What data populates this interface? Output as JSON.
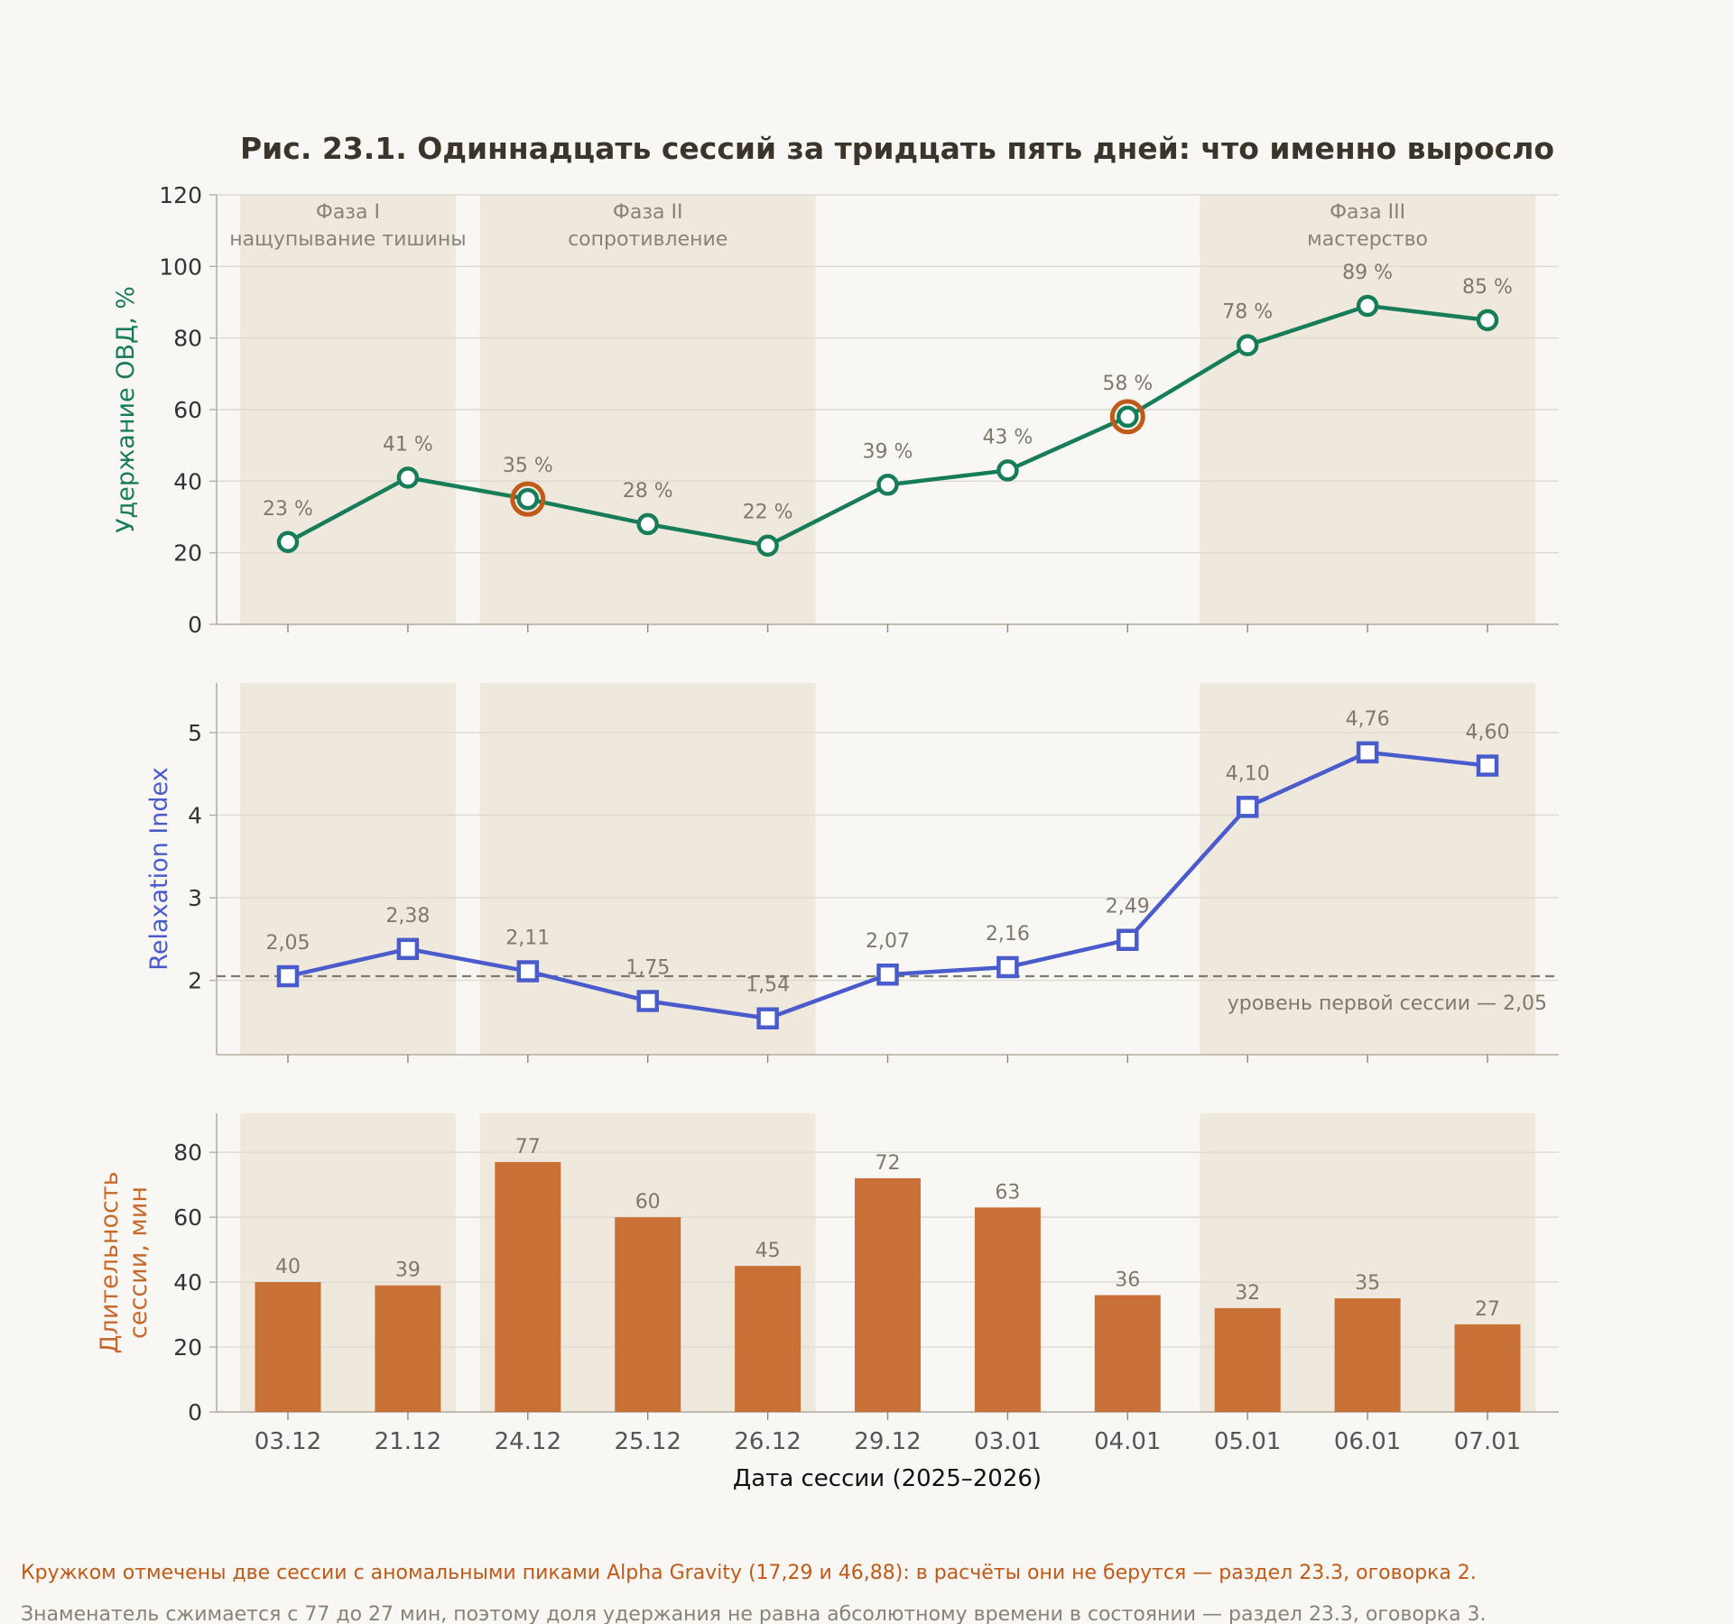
{
  "title": "Рис. 23.1. Одиннадцать сессий за тридцать пять дней: что именно выросло",
  "xlabel": "Дата сессии (2025–2026)",
  "categories": [
    "03.12",
    "21.12",
    "24.12",
    "25.12",
    "26.12",
    "29.12",
    "03.01",
    "04.01",
    "05.01",
    "06.01",
    "07.01"
  ],
  "phases": [
    {
      "title": "Фаза I",
      "subtitle": "нащупывание тишины",
      "from": 0,
      "to": 1
    },
    {
      "title": "Фаза II",
      "subtitle": "сопротивление",
      "from": 2,
      "to": 4
    },
    {
      "title": "Фаза III",
      "subtitle": "мастерство",
      "from": 8,
      "to": 10
    }
  ],
  "colors": {
    "background": "#f9f7f3",
    "phase_band": "#efe8dd",
    "retention": "#177d58",
    "relaxation": "#4a5bcc",
    "duration": "#c6692d",
    "anomaly": "#c05a18",
    "grid": "#dedad2",
    "reference": "#7f7a72"
  },
  "chart_data": [
    {
      "type": "line",
      "ylabel": "Удержание ОВД, %",
      "ylim": [
        0,
        120
      ],
      "yticks": [
        0,
        20,
        40,
        60,
        80,
        100,
        120
      ],
      "grid": true,
      "values": [
        23,
        41,
        35,
        28,
        22,
        39,
        43,
        58,
        78,
        89,
        85
      ],
      "labels": [
        "23 %",
        "41 %",
        "35 %",
        "28 %",
        "22 %",
        "39 %",
        "43 %",
        "58 %",
        "78 %",
        "89 %",
        "85 %"
      ],
      "marker": "circle",
      "highlighted": [
        "24.12",
        "04.01"
      ]
    },
    {
      "type": "line",
      "ylabel": "Relaxation Index",
      "ylim": [
        1.1,
        5.6
      ],
      "yticks": [
        2,
        3,
        4,
        5
      ],
      "grid": true,
      "values": [
        2.05,
        2.38,
        2.11,
        1.75,
        1.54,
        2.07,
        2.16,
        2.49,
        4.1,
        4.76,
        4.6
      ],
      "labels": [
        "2,05",
        "2,38",
        "2,11",
        "1,75",
        "1,54",
        "2,07",
        "2,16",
        "2,49",
        "4,10",
        "4,76",
        "4,60"
      ],
      "marker": "square",
      "reference": {
        "value": 2.05,
        "label": "уровень первой сессии — 2,05"
      }
    },
    {
      "type": "bar",
      "ylabel": "Длительность сессии, мин",
      "ylabel_lines": [
        "Длительность",
        "сессии, мин"
      ],
      "ylim": [
        0,
        92
      ],
      "yticks": [
        0,
        20,
        40,
        60,
        80
      ],
      "grid": true,
      "values": [
        40,
        39,
        77,
        60,
        45,
        72,
        63,
        36,
        32,
        35,
        27
      ],
      "labels": [
        "40",
        "39",
        "77",
        "60",
        "45",
        "72",
        "63",
        "36",
        "32",
        "35",
        "27"
      ]
    }
  ],
  "notes": [
    "Кружком отмечены две сессии с аномальными пиками Alpha Gravity (17,29 и 46,88): в расчёты они не берутся — раздел 23.3, оговорка 2.",
    "Знаменатель сжимается с 77 до 27 мин, поэтому доля удержания не равна абсолютному времени в состоянии — раздел 23.3, оговорка 3."
  ]
}
